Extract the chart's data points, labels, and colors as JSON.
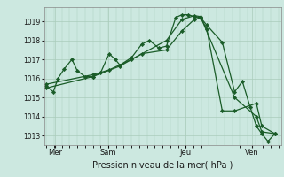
{
  "background_color": "#cce8e0",
  "plot_bg_color": "#cce8e0",
  "grid_color": "#aaccbb",
  "line_color": "#1a5c28",
  "marker_color": "#1a5c28",
  "xlabel": "Pression niveau de la mer( hPa )",
  "ylim": [
    1012.5,
    1019.75
  ],
  "yticks": [
    1013,
    1014,
    1015,
    1016,
    1017,
    1018,
    1019
  ],
  "day_labels": [
    "Mer",
    "Sam",
    "Jeu",
    "Ven"
  ],
  "day_positions": [
    16,
    85,
    185,
    270
  ],
  "series1_x": [
    5,
    14,
    20,
    28,
    38,
    45,
    55,
    65,
    75,
    86,
    94,
    100,
    115,
    128,
    138,
    150,
    160,
    172,
    180,
    188,
    196,
    204,
    212,
    232,
    248,
    258,
    268,
    276,
    283,
    291,
    300
  ],
  "series1_y": [
    1015.6,
    1015.3,
    1016.0,
    1016.5,
    1017.0,
    1016.4,
    1016.1,
    1016.1,
    1016.3,
    1017.3,
    1017.0,
    1016.7,
    1017.1,
    1017.8,
    1018.0,
    1017.6,
    1017.7,
    1019.2,
    1019.35,
    1019.35,
    1019.25,
    1019.2,
    1018.8,
    1017.9,
    1015.3,
    1015.85,
    1014.5,
    1013.5,
    1013.1,
    1012.7,
    1013.1
  ],
  "series2_x": [
    5,
    65,
    100,
    128,
    160,
    180,
    196,
    204,
    212,
    232,
    248,
    276,
    283,
    300
  ],
  "series2_y": [
    1015.5,
    1016.1,
    1016.65,
    1017.3,
    1017.5,
    1018.5,
    1019.1,
    1019.2,
    1018.6,
    1014.3,
    1014.3,
    1014.7,
    1013.5,
    1013.1
  ],
  "series3_x": [
    5,
    65,
    86,
    115,
    160,
    180,
    196,
    204,
    248,
    276,
    283,
    300
  ],
  "series3_y": [
    1015.7,
    1016.2,
    1016.45,
    1017.0,
    1018.0,
    1019.1,
    1019.3,
    1019.25,
    1015.0,
    1014.0,
    1013.2,
    1013.1
  ]
}
